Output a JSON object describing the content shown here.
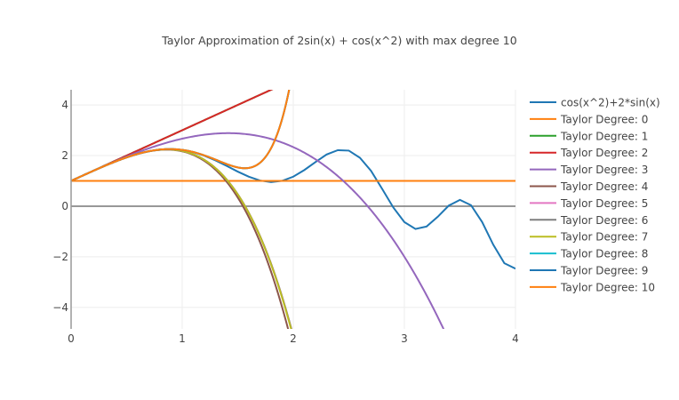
{
  "chart_data": {
    "type": "line",
    "title": "Taylor Approximation of 2sin(x) + cos(x^2) with max degree 10",
    "xlabel": "",
    "ylabel": "",
    "xlim": [
      0,
      4
    ],
    "ylim": [
      -4.85,
      4.6
    ],
    "xticks": [
      "0",
      "1",
      "2",
      "3",
      "4"
    ],
    "yticks": [
      "−4",
      "−2",
      "0",
      "2",
      "4"
    ],
    "grid": true,
    "legend_position": "right",
    "function": {
      "name": "cos(x^2)+2*sin(x)",
      "color": "#1f77b4",
      "x": [
        0,
        0.1,
        0.2,
        0.3,
        0.4,
        0.5,
        0.6,
        0.7,
        0.8,
        0.9,
        1.0,
        1.1,
        1.2,
        1.3,
        1.4,
        1.5,
        1.6,
        1.7,
        1.8,
        1.9,
        2.0,
        2.1,
        2.2,
        2.3,
        2.4,
        2.5,
        2.6,
        2.7,
        2.8,
        2.9,
        3.0,
        3.1,
        3.2,
        3.3,
        3.4,
        3.5,
        3.6,
        3.7,
        3.8,
        3.9,
        4.0
      ],
      "y": [
        1,
        1.1996,
        1.3965,
        1.587,
        1.7661,
        1.9278,
        2.0652,
        2.1708,
        2.2368,
        2.2562,
        2.2232,
        2.1329,
        1.9945,
        1.8084,
        1.5915,
        1.3668,
        1.1631,
        1.0142,
        0.9532,
        1.0019,
        1.165,
        1.43,
        1.7442,
        2.0434,
        2.2121,
        2.1962,
        1.9126,
        1.3935,
        0.684,
        -0.0489,
        -0.6289,
        -0.8997,
        -0.8026,
        -0.4209,
        0.0248,
        0.2488,
        0.0385,
        -0.6266,
        -1.522,
        -2.2545,
        -2.4713
      ]
    },
    "series": [
      {
        "name": "Taylor Degree: 0",
        "color": "#ff7f0e",
        "coefficients": [
          1
        ]
      },
      {
        "name": "Taylor Degree: 1",
        "color": "#2ca02c",
        "coefficients": [
          1,
          2
        ]
      },
      {
        "name": "Taylor Degree: 2",
        "color": "#d62728",
        "coefficients": [
          1,
          2,
          0
        ]
      },
      {
        "name": "Taylor Degree: 3",
        "color": "#9467bd",
        "coefficients": [
          1,
          2,
          0,
          -0.333333
        ]
      },
      {
        "name": "Taylor Degree: 4",
        "color": "#8c564b",
        "coefficients": [
          1,
          2,
          0,
          -0.333333,
          -0.5
        ]
      },
      {
        "name": "Taylor Degree: 5",
        "color": "#e377c2",
        "coefficients": [
          1,
          2,
          0,
          -0.333333,
          -0.5,
          0.0166667
        ]
      },
      {
        "name": "Taylor Degree: 6",
        "color": "#7f7f7f",
        "coefficients": [
          1,
          2,
          0,
          -0.333333,
          -0.5,
          0.0166667,
          0
        ]
      },
      {
        "name": "Taylor Degree: 7",
        "color": "#bcbd22",
        "coefficients": [
          1,
          2,
          0,
          -0.333333,
          -0.5,
          0.0166667,
          0,
          -0.000396825
        ]
      },
      {
        "name": "Taylor Degree: 8",
        "color": "#17becf",
        "coefficients": [
          1,
          2,
          0,
          -0.333333,
          -0.5,
          0.0166667,
          0,
          -0.000396825,
          0.0416667
        ]
      },
      {
        "name": "Taylor Degree: 9",
        "color": "#1f77b4",
        "coefficients": [
          1,
          2,
          0,
          -0.333333,
          -0.5,
          0.0166667,
          0,
          -0.000396825,
          0.0416667,
          5.51146e-06
        ]
      },
      {
        "name": "Taylor Degree: 10",
        "color": "#ff7f0e",
        "coefficients": [
          1,
          2,
          0,
          -0.333333,
          -0.5,
          0.0166667,
          0,
          -0.000396825,
          0.0416667,
          5.51146e-06,
          0
        ]
      }
    ]
  }
}
